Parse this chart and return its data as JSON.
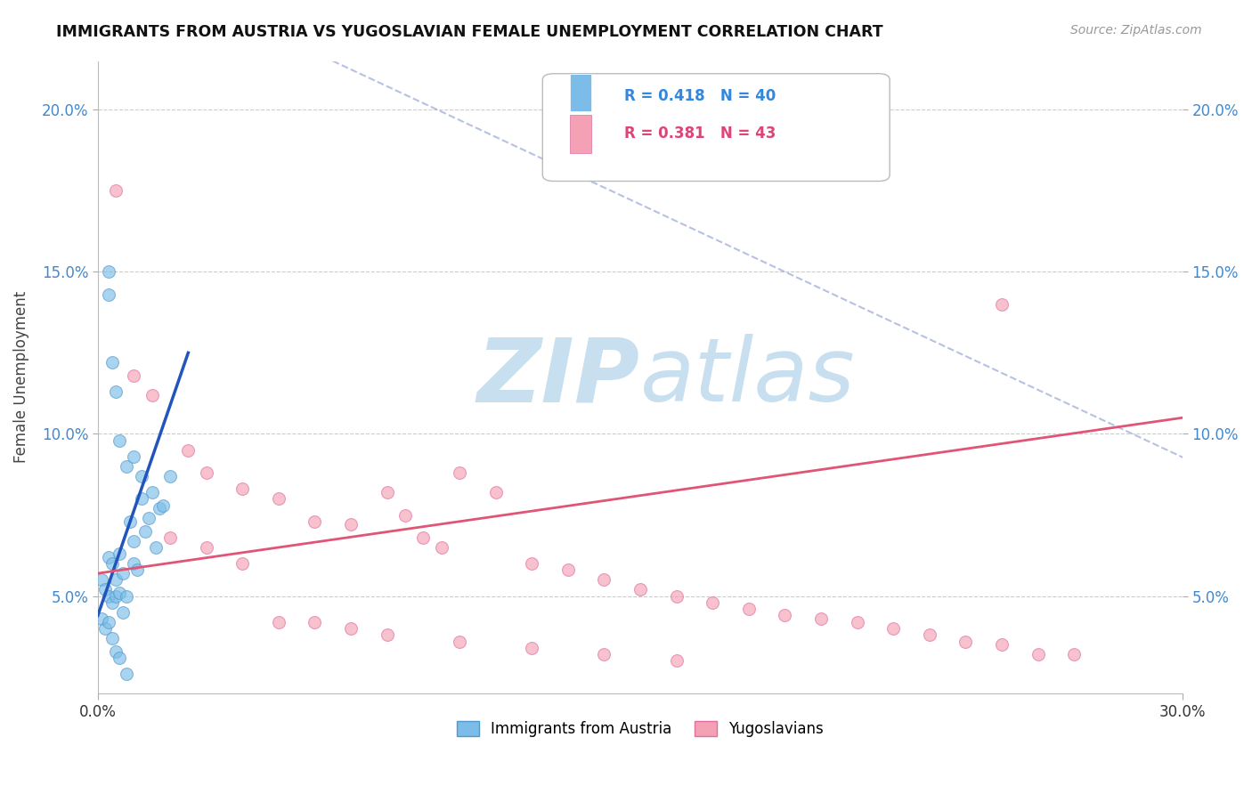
{
  "title": "IMMIGRANTS FROM AUSTRIA VS YUGOSLAVIAN FEMALE UNEMPLOYMENT CORRELATION CHART",
  "source": "Source: ZipAtlas.com",
  "ylabel": "Female Unemployment",
  "y_ticks": [
    0.05,
    0.1,
    0.15,
    0.2
  ],
  "y_tick_labels": [
    "5.0%",
    "10.0%",
    "15.0%",
    "20.0%"
  ],
  "xlim": [
    0.0,
    0.3
  ],
  "ylim": [
    0.02,
    0.215
  ],
  "legend_blue_r": "R = 0.418",
  "legend_blue_n": "N = 40",
  "legend_pink_r": "R = 0.381",
  "legend_pink_n": "N = 43",
  "blue_color": "#7bbde8",
  "pink_color": "#f4a0b5",
  "blue_edge_color": "#5599cc",
  "pink_edge_color": "#e070a0",
  "blue_line_color": "#2255bb",
  "pink_line_color": "#e05575",
  "legend_blue_text_color": "#3388dd",
  "legend_pink_text_color": "#dd4477",
  "watermark_zip_color": "#c8dff0",
  "watermark_atlas_color": "#c8dff0",
  "diag_color": "#8899cc",
  "blue_scatter": [
    [
      0.001,
      0.055
    ],
    [
      0.002,
      0.052
    ],
    [
      0.003,
      0.05
    ],
    [
      0.003,
      0.062
    ],
    [
      0.004,
      0.048
    ],
    [
      0.004,
      0.06
    ],
    [
      0.005,
      0.055
    ],
    [
      0.005,
      0.05
    ],
    [
      0.006,
      0.063
    ],
    [
      0.006,
      0.051
    ],
    [
      0.007,
      0.057
    ],
    [
      0.007,
      0.045
    ],
    [
      0.008,
      0.05
    ],
    [
      0.009,
      0.073
    ],
    [
      0.01,
      0.067
    ],
    [
      0.01,
      0.06
    ],
    [
      0.011,
      0.058
    ],
    [
      0.012,
      0.08
    ],
    [
      0.013,
      0.07
    ],
    [
      0.014,
      0.074
    ],
    [
      0.015,
      0.082
    ],
    [
      0.016,
      0.065
    ],
    [
      0.017,
      0.077
    ],
    [
      0.018,
      0.078
    ],
    [
      0.02,
      0.087
    ],
    [
      0.003,
      0.143
    ],
    [
      0.003,
      0.15
    ],
    [
      0.004,
      0.122
    ],
    [
      0.005,
      0.113
    ],
    [
      0.006,
      0.098
    ],
    [
      0.008,
      0.09
    ],
    [
      0.01,
      0.093
    ],
    [
      0.012,
      0.087
    ],
    [
      0.001,
      0.043
    ],
    [
      0.002,
      0.04
    ],
    [
      0.003,
      0.042
    ],
    [
      0.004,
      0.037
    ],
    [
      0.005,
      0.033
    ],
    [
      0.006,
      0.031
    ],
    [
      0.008,
      0.026
    ]
  ],
  "pink_scatter": [
    [
      0.005,
      0.175
    ],
    [
      0.01,
      0.118
    ],
    [
      0.015,
      0.112
    ],
    [
      0.025,
      0.095
    ],
    [
      0.03,
      0.088
    ],
    [
      0.04,
      0.083
    ],
    [
      0.05,
      0.08
    ],
    [
      0.06,
      0.073
    ],
    [
      0.07,
      0.072
    ],
    [
      0.08,
      0.082
    ],
    [
      0.085,
      0.075
    ],
    [
      0.09,
      0.068
    ],
    [
      0.095,
      0.065
    ],
    [
      0.1,
      0.088
    ],
    [
      0.11,
      0.082
    ],
    [
      0.12,
      0.06
    ],
    [
      0.13,
      0.058
    ],
    [
      0.14,
      0.055
    ],
    [
      0.15,
      0.052
    ],
    [
      0.16,
      0.05
    ],
    [
      0.17,
      0.048
    ],
    [
      0.18,
      0.046
    ],
    [
      0.19,
      0.044
    ],
    [
      0.2,
      0.043
    ],
    [
      0.21,
      0.042
    ],
    [
      0.22,
      0.04
    ],
    [
      0.23,
      0.038
    ],
    [
      0.24,
      0.036
    ],
    [
      0.25,
      0.035
    ],
    [
      0.26,
      0.032
    ],
    [
      0.27,
      0.032
    ],
    [
      0.25,
      0.14
    ],
    [
      0.02,
      0.068
    ],
    [
      0.03,
      0.065
    ],
    [
      0.04,
      0.06
    ],
    [
      0.05,
      0.042
    ],
    [
      0.06,
      0.042
    ],
    [
      0.07,
      0.04
    ],
    [
      0.08,
      0.038
    ],
    [
      0.1,
      0.036
    ],
    [
      0.12,
      0.034
    ],
    [
      0.14,
      0.032
    ],
    [
      0.16,
      0.03
    ]
  ],
  "blue_line": [
    [
      0.0,
      0.044
    ],
    [
      0.025,
      0.125
    ]
  ],
  "pink_line": [
    [
      0.0,
      0.057
    ],
    [
      0.3,
      0.105
    ]
  ],
  "diag_line": [
    [
      0.065,
      0.215
    ],
    [
      0.44,
      0.02
    ]
  ]
}
